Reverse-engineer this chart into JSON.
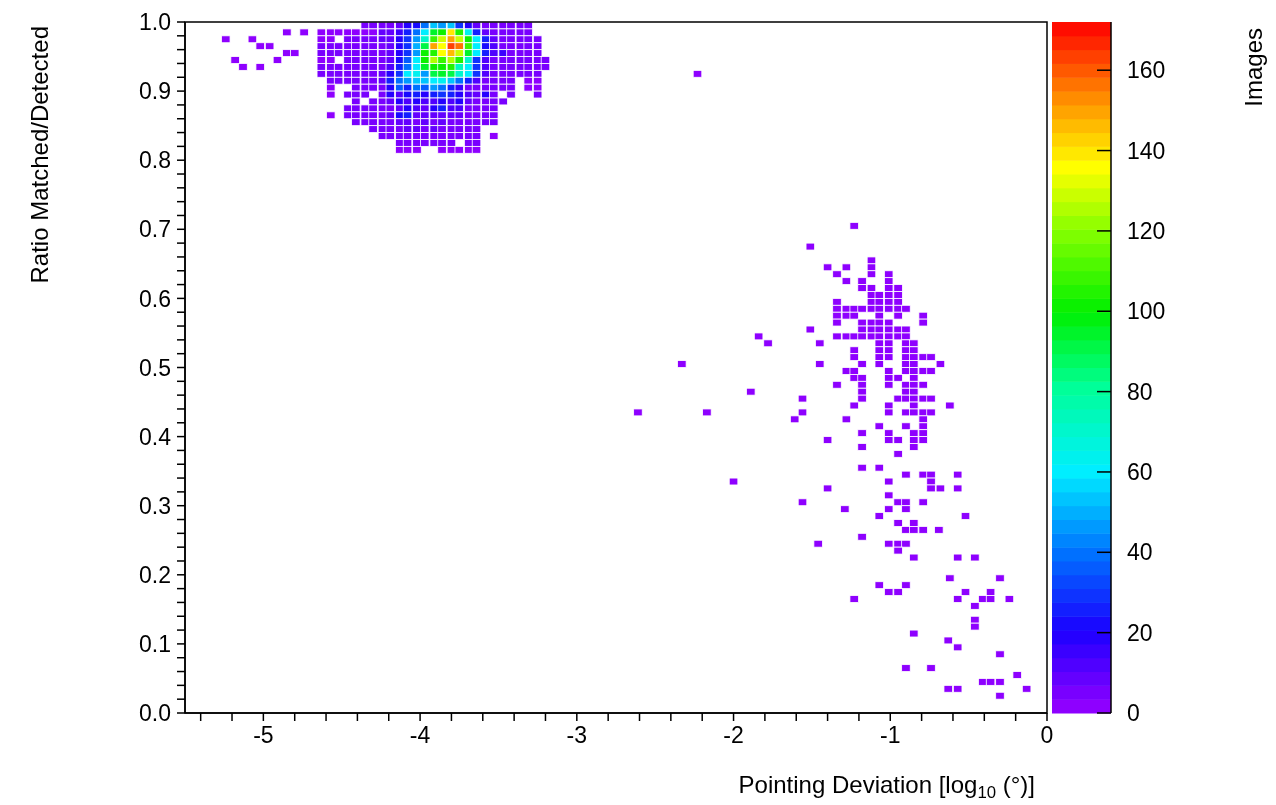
{
  "chart_data": {
    "type": "scatter",
    "xlabel": "Pointing Deviation [log$_{10}$ (°)]",
    "ylabel": "Ratio Matched/Detected",
    "clabel": "Images",
    "marker": "square",
    "xlim": [
      -5.5,
      0
    ],
    "ylim": [
      0,
      1
    ],
    "clim": [
      0,
      172
    ],
    "cticks": [
      0,
      20,
      40,
      60,
      80,
      100,
      120,
      140,
      160
    ],
    "xticks": [
      {
        "value": -5.4,
        "label": null
      },
      {
        "value": -5.2,
        "label": null
      },
      -5,
      {
        "value": -4.8,
        "label": null
      },
      {
        "value": -4.6,
        "label": null
      },
      {
        "value": -4.4,
        "label": null
      },
      {
        "value": -4.2,
        "label": null
      },
      -4,
      {
        "value": -3.8,
        "label": null
      },
      {
        "value": -3.6,
        "label": null
      },
      {
        "value": -3.4,
        "label": null
      },
      {
        "value": -3.2,
        "label": null
      },
      -3,
      {
        "value": -2.8,
        "label": null
      },
      {
        "value": -2.6,
        "label": null
      },
      {
        "value": -2.4,
        "label": null
      },
      {
        "value": -2.2,
        "label": null
      },
      -2,
      {
        "value": -1.8,
        "label": null
      },
      {
        "value": -1.6,
        "label": null
      },
      {
        "value": -1.4,
        "label": null
      },
      {
        "value": -1.2,
        "label": null
      },
      -1,
      {
        "value": -0.8,
        "label": null
      },
      {
        "value": -0.6,
        "label": null
      },
      {
        "value": -0.4,
        "label": null
      },
      {
        "value": -0.2,
        "label": null
      },
      0
    ],
    "yticks": [
      {
        "value": 0,
        "label": "0.0"
      },
      {
        "value": 0.02,
        "label": null
      },
      {
        "value": 0.04,
        "label": null
      },
      {
        "value": 0.06,
        "label": null
      },
      {
        "value": 0.08,
        "label": null
      },
      {
        "value": 0.1,
        "label": "0.1"
      },
      {
        "value": 0.12,
        "label": null
      },
      {
        "value": 0.14,
        "label": null
      },
      {
        "value": 0.16,
        "label": null
      },
      {
        "value": 0.18,
        "label": null
      },
      {
        "value": 0.2,
        "label": "0.2"
      },
      {
        "value": 0.22,
        "label": null
      },
      {
        "value": 0.24,
        "label": null
      },
      {
        "value": 0.26,
        "label": null
      },
      {
        "value": 0.28,
        "label": null
      },
      {
        "value": 0.3,
        "label": "0.3"
      },
      {
        "value": 0.32,
        "label": null
      },
      {
        "value": 0.34,
        "label": null
      },
      {
        "value": 0.36,
        "label": null
      },
      {
        "value": 0.38,
        "label": null
      },
      {
        "value": 0.4,
        "label": "0.4"
      },
      {
        "value": 0.42,
        "label": null
      },
      {
        "value": 0.44,
        "label": null
      },
      {
        "value": 0.46,
        "label": null
      },
      {
        "value": 0.48,
        "label": null
      },
      {
        "value": 0.5,
        "label": "0.5"
      },
      {
        "value": 0.52,
        "label": null
      },
      {
        "value": 0.54,
        "label": null
      },
      {
        "value": 0.56,
        "label": null
      },
      {
        "value": 0.58,
        "label": null
      },
      {
        "value": 0.6,
        "label": "0.6"
      },
      {
        "value": 0.62,
        "label": null
      },
      {
        "value": 0.64,
        "label": null
      },
      {
        "value": 0.66,
        "label": null
      },
      {
        "value": 0.68,
        "label": null
      },
      {
        "value": 0.7,
        "label": "0.7"
      },
      {
        "value": 0.72,
        "label": null
      },
      {
        "value": 0.74,
        "label": null
      },
      {
        "value": 0.76,
        "label": null
      },
      {
        "value": 0.78,
        "label": null
      },
      {
        "value": 0.8,
        "label": "0.8"
      },
      {
        "value": 0.82,
        "label": null
      },
      {
        "value": 0.84,
        "label": null
      },
      {
        "value": 0.86,
        "label": null
      },
      {
        "value": 0.88,
        "label": null
      },
      {
        "value": 0.9,
        "label": "0.9"
      },
      {
        "value": 0.92,
        "label": null
      },
      {
        "value": 0.94,
        "label": null
      },
      {
        "value": 0.96,
        "label": null
      },
      {
        "value": 0.98,
        "label": null
      },
      {
        "value": 1,
        "label": "1.0"
      }
    ],
    "x": [
      -4.35,
      -4.3,
      -4.24,
      -4.19,
      -4.13,
      -4.08,
      -4.02,
      -3.97,
      -3.91,
      -3.86,
      -3.8,
      -3.75,
      -3.69,
      -3.64,
      -3.58,
      -3.53,
      -3.47,
      -3.42,
      -3.36,
      -3.31,
      -4.85,
      -4.74,
      -4.63,
      -4.57,
      -4.52,
      -4.46,
      -4.41,
      -4.35,
      -4.3,
      -4.24,
      -4.19,
      -4.13,
      -4.08,
      -4.02,
      -3.97,
      -3.91,
      -3.86,
      -3.8,
      -3.75,
      -3.69,
      -3.64,
      -3.58,
      -3.53,
      -3.47,
      -3.42,
      -3.36,
      -3.31,
      -5.24,
      -5.07,
      -4.63,
      -4.57,
      -4.46,
      -4.41,
      -4.35,
      -4.3,
      -4.24,
      -4.19,
      -4.13,
      -4.08,
      -4.02,
      -3.97,
      -3.91,
      -3.86,
      -3.8,
      -3.75,
      -3.69,
      -3.64,
      -3.58,
      -3.53,
      -3.47,
      -3.42,
      -3.36,
      -3.31,
      -3.25,
      -5.02,
      -4.96,
      -4.63,
      -4.57,
      -4.52,
      -4.46,
      -4.41,
      -4.35,
      -4.3,
      -4.24,
      -4.19,
      -4.13,
      -4.08,
      -4.02,
      -3.97,
      -3.91,
      -3.86,
      -3.8,
      -3.75,
      -3.69,
      -3.64,
      -3.58,
      -3.53,
      -3.47,
      -3.42,
      -3.36,
      -3.31,
      -3.25,
      -4.85,
      -4.8,
      -4.63,
      -4.57,
      -4.52,
      -4.46,
      -4.41,
      -4.35,
      -4.3,
      -4.24,
      -4.19,
      -4.13,
      -4.08,
      -4.02,
      -3.97,
      -3.91,
      -3.86,
      -3.8,
      -3.75,
      -3.69,
      -3.64,
      -3.58,
      -3.53,
      -3.47,
      -3.42,
      -3.36,
      -3.31,
      -3.25,
      -5.18,
      -4.91,
      -4.63,
      -4.57,
      -4.46,
      -4.41,
      -4.35,
      -4.3,
      -4.24,
      -4.19,
      -4.13,
      -4.08,
      -4.02,
      -3.97,
      -3.91,
      -3.86,
      -3.8,
      -3.75,
      -3.69,
      -3.64,
      -3.58,
      -3.53,
      -3.47,
      -3.42,
      -3.36,
      -3.31,
      -3.25,
      -3.2,
      -5.13,
      -5.02,
      -4.63,
      -4.57,
      -4.52,
      -4.46,
      -4.41,
      -4.35,
      -4.3,
      -4.24,
      -4.19,
      -4.13,
      -4.08,
      -4.02,
      -3.97,
      -3.91,
      -3.86,
      -3.8,
      -3.75,
      -3.69,
      -3.64,
      -3.58,
      -3.53,
      -3.47,
      -3.42,
      -3.36,
      -3.31,
      -3.25,
      -3.2,
      -4.63,
      -4.57,
      -4.52,
      -4.46,
      -4.41,
      -4.35,
      -4.3,
      -4.24,
      -4.19,
      -4.13,
      -4.08,
      -4.02,
      -3.97,
      -3.91,
      -3.86,
      -3.8,
      -3.75,
      -3.69,
      -3.64,
      -3.58,
      -3.53,
      -3.47,
      -3.42,
      -3.36,
      -3.31,
      -3.25,
      -2.23,
      -4.57,
      -4.52,
      -4.46,
      -4.41,
      -4.35,
      -4.3,
      -4.24,
      -4.19,
      -4.13,
      -4.08,
      -4.02,
      -3.97,
      -3.91,
      -3.86,
      -3.8,
      -3.75,
      -3.69,
      -3.64,
      -3.58,
      -3.53,
      -3.47,
      -3.42,
      -3.31,
      -3.25,
      -4.57,
      -4.41,
      -4.35,
      -4.3,
      -4.24,
      -4.19,
      -4.13,
      -4.08,
      -4.02,
      -3.97,
      -3.91,
      -3.86,
      -3.8,
      -3.75,
      -3.69,
      -3.64,
      -3.58,
      -3.53,
      -3.47,
      -3.42,
      -3.31,
      -3.25,
      -4.57,
      -4.46,
      -4.41,
      -4.35,
      -4.24,
      -4.19,
      -4.13,
      -4.08,
      -4.02,
      -3.97,
      -3.91,
      -3.86,
      -3.8,
      -3.75,
      -3.69,
      -3.64,
      -3.58,
      -3.53,
      -3.42,
      -3.25,
      -4.41,
      -4.3,
      -4.24,
      -4.19,
      -4.13,
      -4.08,
      -4.02,
      -3.97,
      -3.91,
      -3.86,
      -3.8,
      -3.75,
      -3.69,
      -3.64,
      -3.58,
      -3.53,
      -3.47,
      -4.46,
      -4.41,
      -4.35,
      -4.3,
      -4.24,
      -4.19,
      -4.13,
      -4.08,
      -4.02,
      -3.97,
      -3.91,
      -3.86,
      -3.8,
      -3.75,
      -3.69,
      -3.64,
      -3.58,
      -3.53,
      -4.57,
      -4.46,
      -4.41,
      -4.35,
      -4.3,
      -4.24,
      -4.19,
      -4.13,
      -4.08,
      -4.02,
      -3.97,
      -3.91,
      -3.86,
      -3.8,
      -3.75,
      -3.69,
      -3.64,
      -3.58,
      -3.53,
      -4.41,
      -4.35,
      -4.3,
      -4.24,
      -4.19,
      -4.13,
      -4.08,
      -4.02,
      -3.97,
      -3.91,
      -3.86,
      -3.8,
      -3.75,
      -3.69,
      -3.64,
      -3.58,
      -3.53,
      -4.3,
      -4.24,
      -4.19,
      -4.13,
      -4.08,
      -4.02,
      -3.97,
      -3.91,
      -3.86,
      -3.8,
      -3.75,
      -3.69,
      -3.64,
      -4.24,
      -4.19,
      -4.13,
      -4.08,
      -4.02,
      -3.97,
      -3.91,
      -3.86,
      -3.8,
      -3.75,
      -3.69,
      -3.64,
      -3.53,
      -4.13,
      -4.08,
      -4.02,
      -3.97,
      -3.91,
      -3.86,
      -3.8,
      -3.69,
      -3.64,
      -4.13,
      -4.08,
      -4.02,
      -3.86,
      -3.8,
      -3.75,
      -3.69,
      -3.64,
      -1.23,
      -1.51,
      -1.12,
      -1.4,
      -1.28,
      -1.12,
      -1.34,
      -1.12,
      -1.01,
      -1.28,
      -1.18,
      -1.01,
      -1.18,
      -1.12,
      -1.01,
      -0.95,
      -1.12,
      -1.07,
      -1.01,
      -0.95,
      -1.34,
      -1.12,
      -1.07,
      -1.01,
      -0.95,
      -1.34,
      -1.28,
      -1.23,
      -1.18,
      -1.12,
      -1.07,
      -1.01,
      -0.95,
      -0.9,
      -1.34,
      -1.28,
      -1.23,
      -1.07,
      -0.95,
      -0.79,
      -1.34,
      -1.18,
      -1.12,
      -1.07,
      -1.01,
      -0.79,
      -1.51,
      -1.18,
      -1.12,
      -1.07,
      -1.01,
      -0.95,
      -0.9,
      -1.84,
      -1.34,
      -1.28,
      -1.23,
      -1.18,
      -1.12,
      -1.07,
      -1.01,
      -0.95,
      -0.9,
      -1.78,
      -1.45,
      -1.07,
      -1.01,
      -0.9,
      -0.85,
      -1.23,
      -1.07,
      -1.01,
      -0.9,
      -0.85,
      -1.23,
      -1.07,
      -1.01,
      -0.9,
      -0.85,
      -0.79,
      -0.74,
      -2.33,
      -1.45,
      -1.18,
      -1.07,
      -0.9,
      -0.85,
      -0.68,
      -1.28,
      -1.23,
      -1.01,
      -0.9,
      -0.85,
      -0.79,
      -0.74,
      -1.23,
      -1.18,
      -1.01,
      -0.95,
      -0.85,
      -1.34,
      -1.18,
      -1.01,
      -0.9,
      -0.85,
      -0.79,
      -1.89,
      -1.18,
      -0.9,
      -0.85,
      -1.56,
      -1.18,
      -0.95,
      -0.9,
      -0.85,
      -0.79,
      -0.74,
      -1.23,
      -1.01,
      -0.85,
      -0.62,
      -2.61,
      -2.17,
      -1.56,
      -1.01,
      -0.9,
      -0.85,
      -0.79,
      -0.74,
      -1.61,
      -1.28,
      -0.79,
      -1.07,
      -0.9,
      -0.79,
      -1.18,
      -1.01,
      -0.85,
      -0.79,
      -1.4,
      -1.01,
      -0.95,
      -0.85,
      -0.79,
      -1.18,
      -0.85,
      -0.95,
      -1.18,
      -1.07,
      -0.9,
      -0.79,
      -0.74,
      -0.57,
      -2.0,
      -1.01,
      -0.74,
      -1.4,
      -0.74,
      -0.68,
      -0.57,
      -1.01,
      -1.56,
      -0.95,
      -0.9,
      -0.79,
      -1.29,
      -1.01,
      -0.9,
      -1.07,
      -0.52,
      -0.95,
      -0.85,
      -0.9,
      -0.85,
      -0.79,
      -0.69,
      -1.18,
      -1.46,
      -1.01,
      -0.95,
      -0.9,
      -0.95,
      -0.85,
      -0.57,
      -0.46,
      -0.62,
      -0.3,
      -1.07,
      -0.9,
      -1.01,
      -0.95,
      -0.52,
      -0.36,
      -1.23,
      -0.57,
      -0.41,
      -0.36,
      -0.24,
      -0.46,
      -0.46,
      -0.46,
      -0.85,
      -0.63,
      -0.57,
      -0.3,
      -0.9,
      -0.74,
      -0.19,
      -0.41,
      -0.36,
      -0.3,
      -0.63,
      -0.57,
      -0.13,
      -0.3
    ],
    "values": [
      0.995,
      0.995,
      0.995,
      0.995,
      0.995,
      0.995,
      0.995,
      0.995,
      0.995,
      0.995,
      0.995,
      0.995,
      0.995,
      0.995,
      0.995,
      0.995,
      0.995,
      0.995,
      0.995,
      0.995,
      0.985,
      0.985,
      0.985,
      0.985,
      0.985,
      0.985,
      0.985,
      0.985,
      0.985,
      0.985,
      0.985,
      0.985,
      0.985,
      0.985,
      0.985,
      0.985,
      0.985,
      0.985,
      0.985,
      0.985,
      0.985,
      0.985,
      0.985,
      0.985,
      0.985,
      0.985,
      0.985,
      0.975,
      0.975,
      0.975,
      0.975,
      0.975,
      0.975,
      0.975,
      0.975,
      0.975,
      0.975,
      0.975,
      0.975,
      0.975,
      0.975,
      0.975,
      0.975,
      0.975,
      0.975,
      0.975,
      0.975,
      0.975,
      0.975,
      0.975,
      0.975,
      0.975,
      0.975,
      0.975,
      0.965,
      0.965,
      0.965,
      0.965,
      0.965,
      0.965,
      0.965,
      0.965,
      0.965,
      0.965,
      0.965,
      0.965,
      0.965,
      0.965,
      0.965,
      0.965,
      0.965,
      0.965,
      0.965,
      0.965,
      0.965,
      0.965,
      0.965,
      0.965,
      0.965,
      0.965,
      0.965,
      0.965,
      0.955,
      0.955,
      0.955,
      0.955,
      0.955,
      0.955,
      0.955,
      0.955,
      0.955,
      0.955,
      0.955,
      0.955,
      0.955,
      0.955,
      0.955,
      0.955,
      0.955,
      0.955,
      0.955,
      0.955,
      0.955,
      0.955,
      0.955,
      0.955,
      0.955,
      0.955,
      0.955,
      0.955,
      0.945,
      0.945,
      0.945,
      0.945,
      0.945,
      0.945,
      0.945,
      0.945,
      0.945,
      0.945,
      0.945,
      0.945,
      0.945,
      0.945,
      0.945,
      0.945,
      0.945,
      0.945,
      0.945,
      0.945,
      0.945,
      0.945,
      0.945,
      0.945,
      0.945,
      0.945,
      0.945,
      0.945,
      0.935,
      0.935,
      0.935,
      0.935,
      0.935,
      0.935,
      0.935,
      0.935,
      0.935,
      0.935,
      0.935,
      0.935,
      0.935,
      0.935,
      0.935,
      0.935,
      0.935,
      0.935,
      0.935,
      0.935,
      0.935,
      0.935,
      0.935,
      0.935,
      0.935,
      0.935,
      0.935,
      0.935,
      0.935,
      0.925,
      0.925,
      0.925,
      0.925,
      0.925,
      0.925,
      0.925,
      0.925,
      0.925,
      0.925,
      0.925,
      0.925,
      0.925,
      0.925,
      0.925,
      0.925,
      0.925,
      0.925,
      0.925,
      0.925,
      0.925,
      0.925,
      0.925,
      0.925,
      0.925,
      0.925,
      0.925,
      0.915,
      0.915,
      0.915,
      0.915,
      0.915,
      0.915,
      0.915,
      0.915,
      0.915,
      0.915,
      0.915,
      0.915,
      0.915,
      0.915,
      0.915,
      0.915,
      0.915,
      0.915,
      0.915,
      0.915,
      0.915,
      0.915,
      0.915,
      0.915,
      0.905,
      0.905,
      0.905,
      0.905,
      0.905,
      0.905,
      0.905,
      0.905,
      0.905,
      0.905,
      0.905,
      0.905,
      0.905,
      0.905,
      0.905,
      0.905,
      0.905,
      0.905,
      0.905,
      0.905,
      0.905,
      0.905,
      0.895,
      0.895,
      0.895,
      0.895,
      0.895,
      0.895,
      0.895,
      0.895,
      0.895,
      0.895,
      0.895,
      0.895,
      0.895,
      0.895,
      0.895,
      0.895,
      0.895,
      0.895,
      0.895,
      0.895,
      0.885,
      0.885,
      0.885,
      0.885,
      0.885,
      0.885,
      0.885,
      0.885,
      0.885,
      0.885,
      0.885,
      0.885,
      0.885,
      0.885,
      0.885,
      0.885,
      0.885,
      0.875,
      0.875,
      0.875,
      0.875,
      0.875,
      0.875,
      0.875,
      0.875,
      0.875,
      0.875,
      0.875,
      0.875,
      0.875,
      0.875,
      0.875,
      0.875,
      0.875,
      0.875,
      0.865,
      0.865,
      0.865,
      0.865,
      0.865,
      0.865,
      0.865,
      0.865,
      0.865,
      0.865,
      0.865,
      0.865,
      0.865,
      0.865,
      0.865,
      0.865,
      0.865,
      0.865,
      0.865,
      0.855,
      0.855,
      0.855,
      0.855,
      0.855,
      0.855,
      0.855,
      0.855,
      0.855,
      0.855,
      0.855,
      0.855,
      0.855,
      0.855,
      0.855,
      0.855,
      0.855,
      0.845,
      0.845,
      0.845,
      0.845,
      0.845,
      0.845,
      0.845,
      0.845,
      0.845,
      0.845,
      0.845,
      0.845,
      0.845,
      0.835,
      0.835,
      0.835,
      0.835,
      0.835,
      0.835,
      0.835,
      0.835,
      0.835,
      0.835,
      0.835,
      0.835,
      0.835,
      0.825,
      0.825,
      0.825,
      0.825,
      0.825,
      0.825,
      0.825,
      0.825,
      0.825,
      0.815,
      0.815,
      0.815,
      0.815,
      0.815,
      0.815,
      0.815,
      0.815,
      0.705,
      0.675,
      0.655,
      0.645,
      0.645,
      0.645,
      0.635,
      0.635,
      0.635,
      0.625,
      0.625,
      0.625,
      0.615,
      0.615,
      0.615,
      0.615,
      0.605,
      0.605,
      0.605,
      0.605,
      0.595,
      0.595,
      0.595,
      0.595,
      0.595,
      0.585,
      0.585,
      0.585,
      0.585,
      0.585,
      0.585,
      0.585,
      0.585,
      0.585,
      0.575,
      0.575,
      0.575,
      0.575,
      0.575,
      0.575,
      0.565,
      0.565,
      0.565,
      0.565,
      0.565,
      0.565,
      0.555,
      0.555,
      0.555,
      0.555,
      0.555,
      0.555,
      0.555,
      0.545,
      0.545,
      0.545,
      0.545,
      0.545,
      0.545,
      0.545,
      0.545,
      0.545,
      0.545,
      0.535,
      0.535,
      0.535,
      0.535,
      0.535,
      0.535,
      0.525,
      0.525,
      0.525,
      0.525,
      0.525,
      0.515,
      0.515,
      0.515,
      0.515,
      0.515,
      0.515,
      0.515,
      0.505,
      0.505,
      0.505,
      0.505,
      0.505,
      0.505,
      0.505,
      0.495,
      0.495,
      0.495,
      0.495,
      0.495,
      0.495,
      0.495,
      0.485,
      0.485,
      0.485,
      0.485,
      0.485,
      0.475,
      0.475,
      0.475,
      0.475,
      0.475,
      0.475,
      0.465,
      0.465,
      0.465,
      0.465,
      0.455,
      0.455,
      0.455,
      0.455,
      0.455,
      0.455,
      0.455,
      0.445,
      0.445,
      0.445,
      0.445,
      0.435,
      0.435,
      0.435,
      0.435,
      0.435,
      0.435,
      0.435,
      0.435,
      0.425,
      0.425,
      0.425,
      0.415,
      0.415,
      0.415,
      0.405,
      0.405,
      0.405,
      0.405,
      0.395,
      0.395,
      0.395,
      0.395,
      0.395,
      0.385,
      0.385,
      0.375,
      0.355,
      0.355,
      0.345,
      0.345,
      0.345,
      0.345,
      0.335,
      0.335,
      0.335,
      0.325,
      0.325,
      0.325,
      0.325,
      0.315,
      0.305,
      0.305,
      0.305,
      0.305,
      0.295,
      0.295,
      0.295,
      0.285,
      0.285,
      0.275,
      0.275,
      0.265,
      0.265,
      0.265,
      0.265,
      0.255,
      0.245,
      0.245,
      0.245,
      0.245,
      0.235,
      0.225,
      0.225,
      0.225,
      0.195,
      0.195,
      0.185,
      0.185,
      0.175,
      0.175,
      0.175,
      0.175,
      0.165,
      0.165,
      0.165,
      0.165,
      0.165,
      0.155,
      0.135,
      0.125,
      0.115,
      0.105,
      0.095,
      0.085,
      0.065,
      0.065,
      0.055,
      0.045,
      0.045,
      0.045,
      0.035,
      0.035,
      0.035,
      0.025
    ],
    "cvalues": [
      4,
      4,
      4,
      4,
      8,
      18,
      22,
      40,
      55,
      45,
      55,
      30,
      20,
      10,
      4,
      4,
      4,
      4,
      4,
      4,
      2,
      2,
      3,
      3,
      3,
      3,
      3,
      3,
      3,
      8,
      8,
      15,
      25,
      40,
      60,
      95,
      100,
      140,
      105,
      65,
      25,
      10,
      4,
      4,
      4,
      4,
      4,
      2,
      2,
      3,
      3,
      4,
      4,
      4,
      4,
      8,
      10,
      18,
      28,
      45,
      70,
      110,
      130,
      150,
      130,
      100,
      60,
      25,
      10,
      4,
      4,
      4,
      4,
      4,
      2,
      2,
      4,
      4,
      4,
      4,
      4,
      4,
      4,
      4,
      10,
      20,
      30,
      50,
      90,
      150,
      135,
      165,
      155,
      110,
      60,
      22,
      12,
      4,
      4,
      4,
      4,
      4,
      2,
      2,
      4,
      4,
      4,
      4,
      4,
      4,
      4,
      4,
      8,
      20,
      30,
      45,
      100,
      105,
      135,
      145,
      130,
      95,
      60,
      25,
      12,
      15,
      4,
      4,
      4,
      4,
      2,
      2,
      3,
      3,
      5,
      5,
      5,
      5,
      5,
      10,
      22,
      35,
      60,
      100,
      125,
      110,
      125,
      105,
      70,
      30,
      12,
      4,
      4,
      4,
      4,
      4,
      4,
      4,
      2,
      2,
      4,
      4,
      4,
      4,
      4,
      4,
      4,
      4,
      12,
      25,
      40,
      60,
      95,
      100,
      100,
      105,
      75,
      60,
      28,
      12,
      4,
      4,
      4,
      4,
      4,
      4,
      4,
      4,
      4,
      4,
      4,
      4,
      4,
      4,
      8,
      20,
      30,
      60,
      65,
      45,
      90,
      95,
      90,
      70,
      60,
      30,
      12,
      4,
      4,
      4,
      4,
      4,
      4,
      1,
      4,
      4,
      4,
      4,
      4,
      4,
      10,
      25,
      40,
      45,
      55,
      55,
      60,
      65,
      55,
      40,
      25,
      12,
      4,
      4,
      4,
      4,
      3,
      3,
      3,
      4,
      4,
      4,
      4,
      20,
      35,
      25,
      40,
      35,
      45,
      40,
      25,
      15,
      5,
      5,
      5,
      5,
      5,
      5,
      3,
      3,
      3,
      4,
      4,
      4,
      4,
      20,
      12,
      22,
      25,
      18,
      25,
      30,
      25,
      20,
      12,
      10,
      18,
      5,
      4,
      4,
      4,
      5,
      5,
      10,
      18,
      12,
      20,
      12,
      12,
      18,
      12,
      18,
      10,
      5,
      5,
      5,
      5,
      4,
      4,
      4,
      5,
      5,
      5,
      10,
      20,
      12,
      10,
      18,
      25,
      12,
      12,
      5,
      5,
      5,
      5,
      3,
      4,
      4,
      4,
      4,
      4,
      8,
      22,
      25,
      10,
      10,
      10,
      10,
      10,
      10,
      5,
      5,
      5,
      5,
      4,
      4,
      4,
      4,
      4,
      10,
      10,
      4,
      8,
      4,
      8,
      4,
      4,
      4,
      4,
      4,
      4,
      4,
      4,
      4,
      4,
      10,
      8,
      4,
      8,
      4,
      4,
      4,
      4,
      4,
      4,
      4,
      6,
      6,
      6,
      6,
      6,
      6,
      6,
      6,
      4,
      4,
      3,
      4,
      4,
      4,
      4,
      4,
      4,
      4,
      4,
      4,
      3,
      3,
      3,
      3,
      3,
      3,
      3,
      3,
      1,
      1,
      1,
      1,
      1,
      1,
      1,
      1,
      1,
      1,
      1,
      1,
      1,
      1,
      1,
      1,
      1,
      1,
      1,
      1,
      1,
      1,
      1,
      1,
      1,
      1,
      1,
      1,
      1,
      1,
      1,
      1,
      1,
      1,
      1,
      1,
      1,
      3,
      1,
      1,
      1,
      1,
      1,
      1,
      1,
      1,
      1,
      1,
      3,
      1,
      1,
      1,
      1,
      1,
      1,
      1,
      1,
      1,
      1,
      1,
      3,
      1,
      1,
      1,
      1,
      1,
      1,
      1,
      1,
      1,
      1,
      1,
      1,
      1,
      1,
      1,
      1,
      1,
      1,
      1,
      1,
      1,
      1,
      1,
      3,
      1,
      1,
      1,
      1,
      1,
      3,
      1,
      1,
      1,
      1,
      1,
      1,
      1,
      1,
      1,
      1,
      1,
      1,
      1,
      1,
      1,
      1,
      1,
      1,
      3,
      1,
      1,
      1,
      1,
      1,
      1,
      1,
      1,
      1,
      1,
      1,
      1,
      1,
      1,
      1,
      1,
      1,
      1,
      1,
      1,
      1,
      1,
      1,
      1,
      1,
      1,
      1,
      1,
      1,
      1,
      1,
      1,
      1,
      1,
      1,
      1,
      1,
      1,
      1,
      1,
      1,
      1,
      1,
      1,
      1,
      1,
      1,
      1,
      1,
      1,
      1,
      1,
      1,
      1,
      1,
      1,
      1,
      1,
      1,
      1,
      1,
      1,
      1,
      1,
      1,
      1,
      1,
      1,
      1,
      1,
      1,
      1,
      1,
      1,
      1,
      1,
      1,
      1,
      1,
      1,
      1,
      1,
      1,
      1,
      1,
      1,
      1,
      1,
      1,
      1,
      1,
      1,
      1,
      1,
      1,
      1,
      1,
      1,
      1,
      1,
      1,
      1,
      1,
      1,
      1
    ]
  }
}
